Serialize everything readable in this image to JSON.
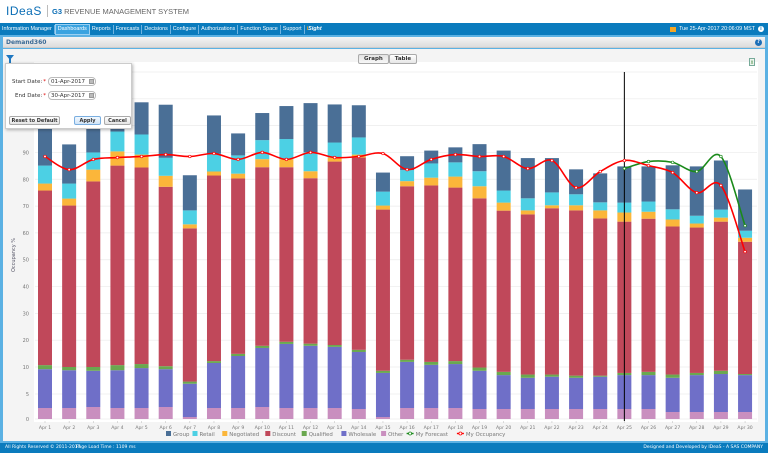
{
  "header": {
    "logo_text": "IDeaS",
    "system_title_prefix": "G3",
    "system_title": "REVENUE MANAGEMENT SYSTEM"
  },
  "nav": {
    "items": [
      "Information Manager",
      "Dashboards",
      "Reports",
      "Forecasts",
      "Decisions",
      "Configure",
      "Authorizations",
      "Function Space",
      "Support"
    ],
    "active": "Dashboards",
    "insight_prefix": "i",
    "insight_label": "Sight",
    "datetime": "Tue 25-Apr-2017 20:06:09 MST",
    "icons": [
      "flag-icon",
      "info-icon"
    ]
  },
  "page": {
    "title": "Demand360",
    "help_icon": "?"
  },
  "view_toggle": {
    "graph": "Graph",
    "table": "Table",
    "selected": "Graph"
  },
  "export_icon": "X",
  "filter": {
    "start_label": "Start Date:",
    "start_value": "01-Apr-2017",
    "end_label": "End Date:",
    "end_value": "30-Apr-2017",
    "required_mark": "*",
    "reset": "Reset to Default",
    "apply": "Apply",
    "cancel": "Cancel"
  },
  "chart_data": {
    "type": "bar",
    "stacked": true,
    "ylabel": "Occupancy %",
    "yticks": [
      0,
      5,
      10,
      20,
      30,
      40,
      50,
      60,
      70,
      80,
      90
    ],
    "grid": true,
    "legend_position": "bottom",
    "current_date_marker": "Apr 25",
    "categories": [
      "Apr 1",
      "Apr 2",
      "Apr 3",
      "Apr 4",
      "Apr 5",
      "Apr 6",
      "Apr 7",
      "Apr 8",
      "Apr 9",
      "Apr 10",
      "Apr 11",
      "Apr 12",
      "Apr 13",
      "Apr 14",
      "Apr 15",
      "Apr 16",
      "Apr 17",
      "Apr 18",
      "Apr 19",
      "Apr 20",
      "Apr 21",
      "Apr 22",
      "Apr 23",
      "Apr 24",
      "Apr 25",
      "Apr 26",
      "Apr 27",
      "Apr 28",
      "Apr 29",
      "Apr 30"
    ],
    "series": [
      {
        "name": "Other",
        "color": "#c98fbf",
        "values": [
          2.2,
          2.2,
          2.4,
          2.2,
          2.2,
          2.4,
          0.4,
          2.2,
          2.2,
          2.4,
          2.2,
          2.2,
          2.2,
          2.0,
          0.4,
          2.2,
          2.2,
          2.2,
          2.0,
          2.0,
          2.0,
          2.0,
          2.0,
          2.0,
          2.0,
          2.0,
          1.4,
          1.4,
          1.4,
          1.4
        ]
      },
      {
        "name": "Wholesale",
        "color": "#6f6fc8",
        "values": [
          7.4,
          7.2,
          6.9,
          7.2,
          7.6,
          7.2,
          6.5,
          9.3,
          11.9,
          14.7,
          16.4,
          15.7,
          15.3,
          13.6,
          8.5,
          9.7,
          8.6,
          8.9,
          7.3,
          6.5,
          6.0,
          6.2,
          6.0,
          6.2,
          6.5,
          6.5,
          6.6,
          7.1,
          7.3,
          7.1
        ]
      },
      {
        "name": "Qualified",
        "color": "#6aa84f",
        "values": [
          1.1,
          0.6,
          0.7,
          1.3,
          1.3,
          0.7,
          0.4,
          0.7,
          0.8,
          0.8,
          0.8,
          0.8,
          0.7,
          0.8,
          0.4,
          0.8,
          1.1,
          1.1,
          0.6,
          0.6,
          0.6,
          0.4,
          0.4,
          0.2,
          0.4,
          0.6,
          0.6,
          0.4,
          0.6,
          0.2
        ]
      },
      {
        "name": "Discount",
        "color": "#c0485a",
        "values": [
          65.1,
          60.2,
          69.2,
          74.4,
          73.3,
          66.9,
          54.4,
          69.2,
          65.4,
          66.6,
          65.1,
          61.7,
          68.4,
          71.7,
          59.4,
          64.7,
          65.8,
          64.7,
          63.0,
          59.2,
          58.3,
          60.6,
          60.0,
          57.0,
          55.3,
          56.2,
          53.8,
          53.1,
          54.9,
          48.0
        ]
      },
      {
        "name": "Negotiated",
        "color": "#fbb63a",
        "values": [
          2.6,
          2.6,
          4.4,
          5.3,
          4.8,
          4.1,
          1.5,
          1.5,
          1.8,
          3.0,
          3.0,
          2.6,
          1.5,
          1.1,
          1.5,
          1.9,
          2.9,
          4.1,
          4.5,
          3.0,
          1.5,
          1.1,
          1.9,
          3.0,
          3.4,
          2.6,
          2.6,
          1.5,
          1.5,
          1.5
        ]
      },
      {
        "name": "Retail",
        "color": "#4cd0e4",
        "values": [
          6.7,
          5.6,
          6.4,
          7.4,
          7.5,
          6.7,
          5.2,
          6.7,
          6.8,
          7.1,
          7.5,
          7.1,
          5.6,
          6.4,
          5.2,
          4.1,
          5.3,
          5.3,
          5.6,
          4.5,
          4.5,
          4.8,
          4.1,
          3.0,
          3.7,
          3.8,
          3.8,
          2.9,
          3.0,
          2.6
        ]
      },
      {
        "name": "Group",
        "color": "#4a6f96",
        "values": [
          23.2,
          14.6,
          17.6,
          12.0,
          12.0,
          19.8,
          13.1,
          14.2,
          8.2,
          10.1,
          12.3,
          18.3,
          14.2,
          12.0,
          7.1,
          5.2,
          4.8,
          5.6,
          10.1,
          14.9,
          15.0,
          12.8,
          9.3,
          10.8,
          13.5,
          13.1,
          16.4,
          18.4,
          18.3,
          15.4
        ]
      }
    ],
    "lines": [
      {
        "name": "My Forecast",
        "color": "#1a8a1a",
        "values": [
          null,
          null,
          null,
          null,
          null,
          null,
          null,
          null,
          null,
          null,
          null,
          null,
          null,
          null,
          null,
          null,
          null,
          null,
          null,
          null,
          null,
          null,
          null,
          null,
          84.0,
          86.6,
          86.3,
          82.9,
          88.5,
          62.7
        ]
      },
      {
        "name": "My Occupancy",
        "color": "#ff0000",
        "values": [
          88.5,
          83.6,
          87.4,
          88.1,
          88.5,
          89.2,
          88.5,
          89.6,
          87.4,
          90.0,
          87.4,
          90.0,
          88.1,
          88.5,
          89.6,
          83.6,
          87.4,
          89.2,
          88.5,
          88.5,
          84.0,
          87.0,
          76.9,
          82.9,
          87.0,
          85.1,
          82.5,
          75.0,
          77.7,
          53.0
        ]
      }
    ]
  },
  "footer": {
    "copyright": "All Rights Reserved © 2011-2017",
    "load_time": "Page Load Time : 1109 ms",
    "designed_by": "Designed and Developed by IDeaS - A SAS COMPANY"
  }
}
